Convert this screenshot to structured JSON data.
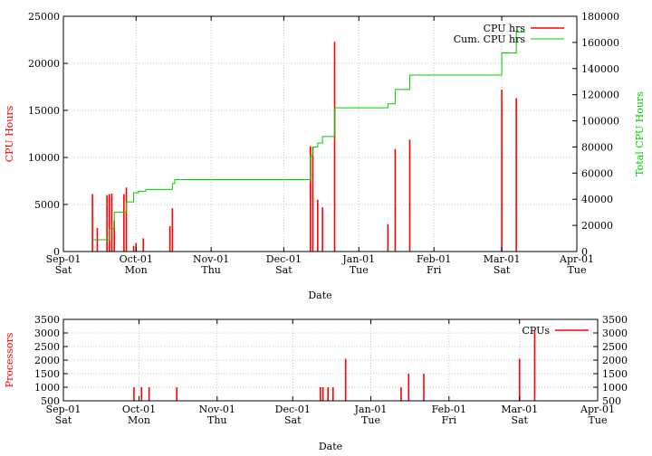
{
  "chart_data": [
    {
      "type": "bar",
      "xlabel": "Date",
      "ylabel": "CPU Hours",
      "y2label": "Total CPU Hours",
      "ylim": [
        0,
        25000
      ],
      "y2lim": [
        0,
        180000
      ],
      "xlim": [
        "2001-09-01",
        "2002-04-01"
      ],
      "x_ticks": [
        {
          "date": "2001-09-01",
          "label": "Sep-01",
          "day": "Sat"
        },
        {
          "date": "2001-10-01",
          "label": "Oct-01",
          "day": "Mon"
        },
        {
          "date": "2001-11-01",
          "label": "Nov-01",
          "day": "Thu"
        },
        {
          "date": "2001-12-01",
          "label": "Dec-01",
          "day": "Sat"
        },
        {
          "date": "2002-01-01",
          "label": "Jan-01",
          "day": "Tue"
        },
        {
          "date": "2002-02-01",
          "label": "Feb-01",
          "day": "Fri"
        },
        {
          "date": "2002-03-01",
          "label": "Mar-01",
          "day": "Sat"
        },
        {
          "date": "2002-04-01",
          "label": "Apr-01",
          "day": "Tue"
        }
      ],
      "y_ticks": [
        0,
        5000,
        10000,
        15000,
        20000,
        25000
      ],
      "y2_ticks": [
        0,
        20000,
        40000,
        60000,
        80000,
        100000,
        120000,
        140000,
        160000,
        180000
      ],
      "grid": true,
      "legend_position": "top-right",
      "series": [
        {
          "name": "CPU hrs",
          "color": "#ff0000",
          "style": "impulses",
          "points": [
            {
              "x": "2001-09-13",
              "y": 6100
            },
            {
              "x": "2001-09-15",
              "y": 2500
            },
            {
              "x": "2001-09-19",
              "y": 6000
            },
            {
              "x": "2001-09-20",
              "y": 6100
            },
            {
              "x": "2001-09-21",
              "y": 6150
            },
            {
              "x": "2001-09-22",
              "y": 3300
            },
            {
              "x": "2001-09-26",
              "y": 6100
            },
            {
              "x": "2001-09-27",
              "y": 6800
            },
            {
              "x": "2001-09-30",
              "y": 600
            },
            {
              "x": "2001-10-01",
              "y": 900
            },
            {
              "x": "2001-10-04",
              "y": 1400
            },
            {
              "x": "2001-10-15",
              "y": 2700
            },
            {
              "x": "2001-10-16",
              "y": 4600
            },
            {
              "x": "2001-12-12",
              "y": 11200
            },
            {
              "x": "2001-12-13",
              "y": 11100
            },
            {
              "x": "2001-12-15",
              "y": 5500
            },
            {
              "x": "2001-12-17",
              "y": 4700
            },
            {
              "x": "2001-12-22",
              "y": 22300
            },
            {
              "x": "2002-01-13",
              "y": 2900
            },
            {
              "x": "2002-01-16",
              "y": 10900
            },
            {
              "x": "2002-01-22",
              "y": 11900
            },
            {
              "x": "2002-03-01",
              "y": 17200
            },
            {
              "x": "2002-03-07",
              "y": 16300
            }
          ]
        },
        {
          "name": "Cum. CPU hrs",
          "color": "#00cc00",
          "style": "steps",
          "axis": "y2",
          "points": [
            {
              "x": "2001-09-13",
              "y": 9000
            },
            {
              "x": "2001-09-20",
              "y": 17500
            },
            {
              "x": "2001-09-22",
              "y": 30000
            },
            {
              "x": "2001-09-27",
              "y": 38000
            },
            {
              "x": "2001-09-30",
              "y": 45000
            },
            {
              "x": "2001-10-02",
              "y": 46000
            },
            {
              "x": "2001-10-05",
              "y": 47500
            },
            {
              "x": "2001-10-16",
              "y": 52000
            },
            {
              "x": "2001-10-17",
              "y": 55000
            },
            {
              "x": "2001-12-12",
              "y": 73000
            },
            {
              "x": "2001-12-13",
              "y": 80000
            },
            {
              "x": "2001-12-15",
              "y": 83000
            },
            {
              "x": "2001-12-17",
              "y": 88000
            },
            {
              "x": "2001-12-22",
              "y": 110000
            },
            {
              "x": "2002-01-13",
              "y": 113000
            },
            {
              "x": "2002-01-16",
              "y": 124000
            },
            {
              "x": "2002-01-22",
              "y": 135000
            },
            {
              "x": "2002-03-01",
              "y": 152000
            },
            {
              "x": "2002-03-07",
              "y": 168000
            }
          ]
        }
      ]
    },
    {
      "type": "bar",
      "xlabel": "Date",
      "ylabel": "Processors",
      "ylim": [
        500,
        3500
      ],
      "y2lim": [
        500,
        3500
      ],
      "xlim": [
        "2001-09-01",
        "2002-04-01"
      ],
      "x_ticks": [
        {
          "date": "2001-09-01",
          "label": "Sep-01",
          "day": "Sat"
        },
        {
          "date": "2001-10-01",
          "label": "Oct-01",
          "day": "Mon"
        },
        {
          "date": "2001-11-01",
          "label": "Nov-01",
          "day": "Thu"
        },
        {
          "date": "2001-12-01",
          "label": "Dec-01",
          "day": "Sat"
        },
        {
          "date": "2002-01-01",
          "label": "Jan-01",
          "day": "Tue"
        },
        {
          "date": "2002-02-01",
          "label": "Feb-01",
          "day": "Fri"
        },
        {
          "date": "2002-03-01",
          "label": "Mar-01",
          "day": "Sat"
        },
        {
          "date": "2002-04-01",
          "label": "Apr-01",
          "day": "Tue"
        }
      ],
      "y_ticks": [
        500,
        1000,
        1500,
        2000,
        2500,
        3000,
        3500
      ],
      "y2_ticks": [
        500,
        1000,
        1500,
        2000,
        2500,
        3000,
        3500
      ],
      "grid": true,
      "legend_position": "top-right",
      "series": [
        {
          "name": "CPUs",
          "color": "#ff0000",
          "style": "impulses",
          "points": [
            {
              "x": "2001-09-29",
              "y": 1000
            },
            {
              "x": "2001-10-02",
              "y": 1000
            },
            {
              "x": "2001-10-05",
              "y": 1000
            },
            {
              "x": "2001-10-16",
              "y": 1000
            },
            {
              "x": "2001-12-12",
              "y": 1000
            },
            {
              "x": "2001-12-13",
              "y": 1000
            },
            {
              "x": "2001-12-15",
              "y": 1000
            },
            {
              "x": "2001-12-17",
              "y": 1000
            },
            {
              "x": "2001-12-22",
              "y": 2050
            },
            {
              "x": "2002-01-13",
              "y": 1000
            },
            {
              "x": "2002-01-16",
              "y": 1500
            },
            {
              "x": "2002-01-22",
              "y": 1500
            },
            {
              "x": "2002-03-01",
              "y": 2050
            },
            {
              "x": "2002-03-07",
              "y": 3100
            }
          ]
        }
      ]
    }
  ]
}
